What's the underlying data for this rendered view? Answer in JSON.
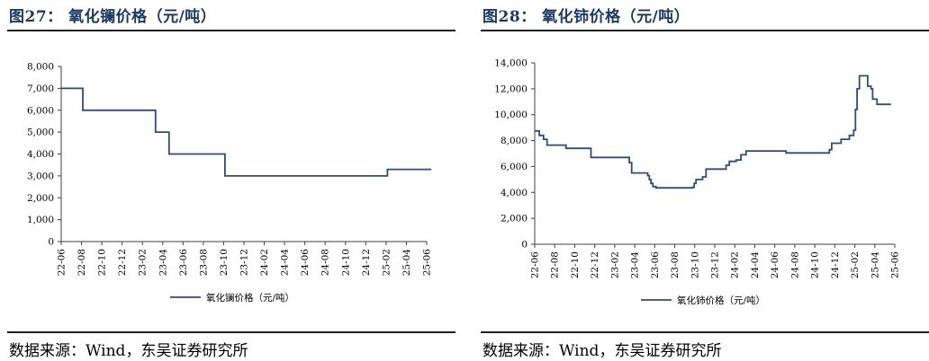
{
  "panels": [
    {
      "title": "图27：  氧化镧价格（元/吨）",
      "source": "数据来源：Wind，东吴证券研究所"
    },
    {
      "title": "图28：  氧化铈价格（元/吨）",
      "source": "数据来源：Wind，东吴证券研究所"
    }
  ],
  "colors": {
    "line": "#2f4b7c",
    "axis": "#404040",
    "title": "#1f3864"
  },
  "chart_data": [
    {
      "type": "line",
      "title": "",
      "xlabel": "",
      "ylabel": "",
      "ylim": [
        0,
        8000
      ],
      "yticks": [
        0,
        1000,
        2000,
        3000,
        4000,
        5000,
        6000,
        7000,
        8000
      ],
      "ytick_labels": [
        "0",
        "1,000",
        "2,000",
        "3,000",
        "4,000",
        "5,000",
        "6,000",
        "7,000",
        "8,000"
      ],
      "xlim": [
        "2022-06",
        "2025-06"
      ],
      "xtick_labels": [
        "22-06",
        "22-08",
        "22-10",
        "22-12",
        "23-02",
        "23-04",
        "23-06",
        "23-08",
        "23-10",
        "23-12",
        "24-02",
        "24-04",
        "24-06",
        "24-08",
        "24-10",
        "24-12",
        "25-02",
        "25-04",
        "25-06"
      ],
      "grid": false,
      "legend_position": "bottom",
      "series": [
        {
          "name": "氧化镧价格（元/吨）",
          "step": true,
          "points": [
            [
              "2022-06-01",
              7000
            ],
            [
              "2022-08-05",
              6000
            ],
            [
              "2023-03-10",
              5000
            ],
            [
              "2023-04-20",
              4000
            ],
            [
              "2023-10-05",
              3000
            ],
            [
              "2025-02-05",
              3300
            ],
            [
              "2025-06-15",
              3300
            ]
          ]
        }
      ]
    },
    {
      "type": "line",
      "title": "",
      "xlabel": "",
      "ylabel": "",
      "ylim": [
        0,
        14000
      ],
      "yticks": [
        0,
        2000,
        4000,
        6000,
        8000,
        10000,
        12000,
        14000
      ],
      "ytick_labels": [
        "0",
        "2,000",
        "4,000",
        "6,000",
        "8,000",
        "10,000",
        "12,000",
        "14,000"
      ],
      "xlim": [
        "2022-06",
        "2025-06"
      ],
      "xtick_labels": [
        "22-06",
        "22-08",
        "22-10",
        "22-12",
        "23-02",
        "23-04",
        "23-06",
        "23-08",
        "23-10",
        "23-12",
        "24-02",
        "24-04",
        "24-06",
        "24-08",
        "24-10",
        "24-12",
        "25-02",
        "25-04",
        "25-06"
      ],
      "grid": false,
      "legend_position": "bottom",
      "series": [
        {
          "name": "氧化铈价格（元/吨）",
          "step": true,
          "points": [
            [
              "2022-06-01",
              8750
            ],
            [
              "2022-06-15",
              8400
            ],
            [
              "2022-06-28",
              8100
            ],
            [
              "2022-07-08",
              7650
            ],
            [
              "2022-09-05",
              7400
            ],
            [
              "2022-11-20",
              6700
            ],
            [
              "2023-03-15",
              6300
            ],
            [
              "2023-03-22",
              5500
            ],
            [
              "2023-05-10",
              5300
            ],
            [
              "2023-05-15",
              5000
            ],
            [
              "2023-05-20",
              4700
            ],
            [
              "2023-05-26",
              4450
            ],
            [
              "2023-06-05",
              4350
            ],
            [
              "2023-09-25",
              4400
            ],
            [
              "2023-09-30",
              4700
            ],
            [
              "2023-10-05",
              5000
            ],
            [
              "2023-10-25",
              5200
            ],
            [
              "2023-11-05",
              5800
            ],
            [
              "2024-01-05",
              6100
            ],
            [
              "2024-01-15",
              6400
            ],
            [
              "2024-02-05",
              6500
            ],
            [
              "2024-02-20",
              6900
            ],
            [
              "2024-03-05",
              7200
            ],
            [
              "2024-07-05",
              7050
            ],
            [
              "2024-11-15",
              7300
            ],
            [
              "2024-11-22",
              7800
            ],
            [
              "2024-12-20",
              8100
            ],
            [
              "2025-01-15",
              8400
            ],
            [
              "2025-01-28",
              8800
            ],
            [
              "2025-02-03",
              10400
            ],
            [
              "2025-02-08",
              12000
            ],
            [
              "2025-02-15",
              13000
            ],
            [
              "2025-03-10",
              12200
            ],
            [
              "2025-03-20",
              12000
            ],
            [
              "2025-03-25",
              11200
            ],
            [
              "2025-04-08",
              10800
            ],
            [
              "2025-05-20",
              10800
            ]
          ]
        }
      ]
    }
  ]
}
